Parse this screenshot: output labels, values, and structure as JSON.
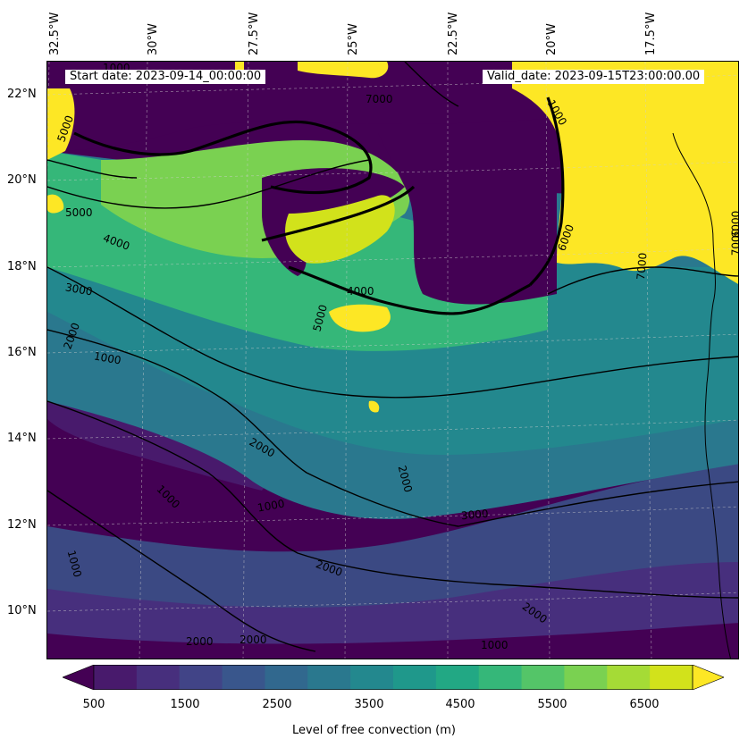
{
  "map": {
    "start_date_text": "Start date: 2023-09-14_00:00:00",
    "valid_date_text": "Valid_date: 2023-09-15T23:00:00.00",
    "lon_labels": [
      "32.5°W",
      "30°W",
      "27.5°W",
      "25°W",
      "22.5°W",
      "20°W",
      "17.5°W"
    ],
    "lat_labels": [
      "22°N",
      "20°N",
      "18°N",
      "16°N",
      "14°N",
      "12°N",
      "10°N"
    ],
    "contour_labels": [
      "1000",
      "5000",
      "5000",
      "4000",
      "3000",
      "2000",
      "1000",
      "5000",
      "4000",
      "1000",
      "2000",
      "1000",
      "1000",
      "2000",
      "2000",
      "3000",
      "2000",
      "1000",
      "1000",
      "2000",
      "2000",
      "6000",
      "7000",
      "7000",
      "6000",
      "7000"
    ],
    "colors": {
      "levels": [
        "#440154",
        "#481a6c",
        "#472f7d",
        "#414487",
        "#39568c",
        "#31688e",
        "#2a788e",
        "#23888e",
        "#1f988b",
        "#22a884",
        "#35b779",
        "#54c568",
        "#7ad151",
        "#a5db36",
        "#d2e21b",
        "#fde725"
      ]
    }
  },
  "colorbar": {
    "ticks": [
      "500",
      "1500",
      "2500",
      "3500",
      "4500",
      "5500",
      "6500"
    ],
    "label": "Level of free convection (m)"
  }
}
